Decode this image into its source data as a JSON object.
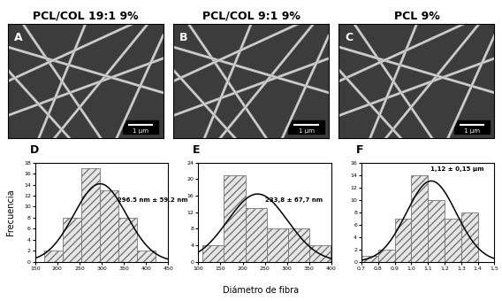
{
  "figure": {
    "ylabel": "Frecuencia",
    "xlabel": "Diámetro de fibra"
  },
  "images": [
    {
      "title": "PCL/COL 19:1 9%",
      "panel": "A",
      "scale_bar": "1 µm"
    },
    {
      "title": "PCL/COL 9:1 9%",
      "panel": "B",
      "scale_bar": "1 µm"
    },
    {
      "title": "PCL 9%",
      "panel": "C",
      "scale_bar": "1 µm"
    }
  ],
  "chart_data": [
    {
      "type": "histogram",
      "panel": "D",
      "bins": [
        170,
        212,
        254,
        296,
        338,
        380,
        422
      ],
      "counts": [
        2,
        8,
        17,
        13,
        8,
        2
      ],
      "fit": {
        "mean": 296.5,
        "sd": 59.2
      },
      "annotation": "296.5 nm ± 59.2 nm",
      "xlim": [
        150,
        450
      ],
      "xticks": [
        150,
        200,
        250,
        300,
        350,
        400,
        450
      ],
      "ylim": [
        0,
        18
      ],
      "yticks": [
        0,
        2,
        4,
        6,
        8,
        10,
        12,
        14,
        16,
        18
      ]
    },
    {
      "type": "histogram",
      "panel": "E",
      "bins": [
        110,
        158,
        206,
        254,
        302,
        350,
        398
      ],
      "counts": [
        4,
        21,
        13,
        8,
        8,
        4
      ],
      "fit": {
        "mean": 233.8,
        "sd": 67.7
      },
      "annotation": "233,8 ± 67,7 nm",
      "xlim": [
        100,
        400
      ],
      "xticks": [
        100,
        150,
        200,
        250,
        300,
        350,
        400
      ],
      "ylim": [
        0,
        24
      ],
      "yticks": [
        0,
        4,
        8,
        12,
        16,
        20,
        24
      ]
    },
    {
      "type": "histogram",
      "panel": "F",
      "bins": [
        0.7,
        0.8,
        0.9,
        1.0,
        1.1,
        1.2,
        1.3,
        1.4
      ],
      "counts": [
        1,
        2,
        7,
        14,
        10,
        7,
        8
      ],
      "fit": {
        "mean": 1.12,
        "sd": 0.15
      },
      "annotation": "1,12 ± 0,15 µm",
      "xlim": [
        0.7,
        1.5
      ],
      "xticks": [
        {
          "value": 0.7,
          "label": "0,7"
        },
        {
          "value": 0.8,
          "label": "0,8"
        },
        {
          "value": 0.9,
          "label": "0,9"
        },
        {
          "value": 1.0,
          "label": "1,0"
        },
        {
          "value": 1.1,
          "label": "1,1"
        },
        {
          "value": 1.2,
          "label": "1,2"
        },
        {
          "value": 1.3,
          "label": "1,3"
        },
        {
          "value": 1.4,
          "label": "1,4"
        },
        {
          "value": 1.5,
          "label": "1,5"
        }
      ],
      "ylim": [
        0,
        16
      ],
      "yticks": [
        0,
        2,
        4,
        6,
        8,
        10,
        12,
        14,
        16
      ]
    }
  ]
}
